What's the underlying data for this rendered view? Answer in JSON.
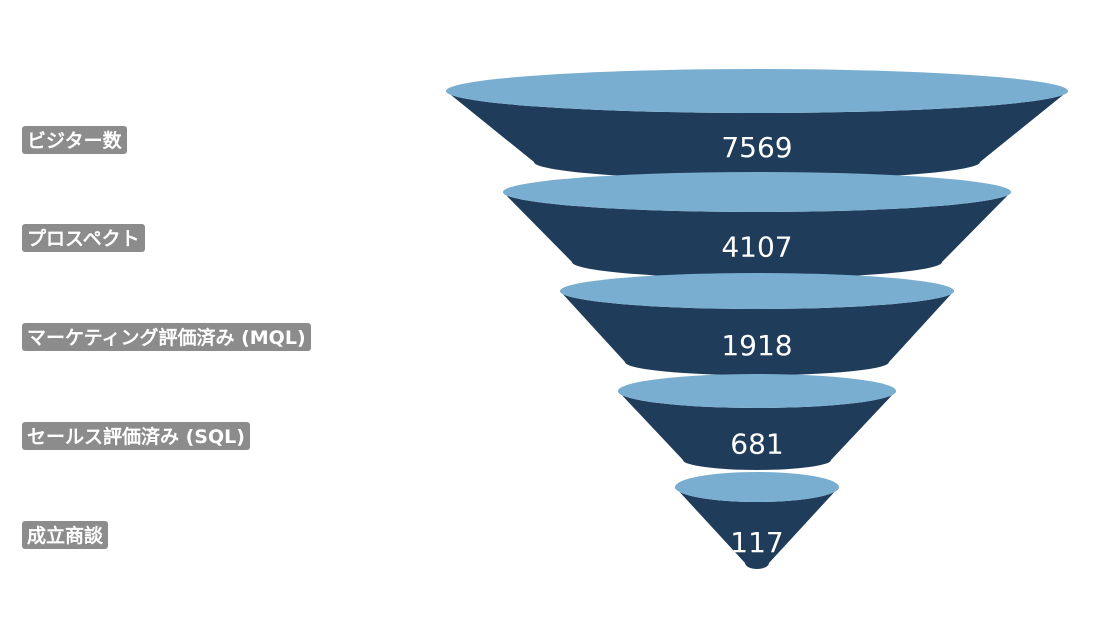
{
  "chart_data": {
    "type": "funnel",
    "categories": [
      "ビジター数",
      "プロスペクト",
      "マーケティング評価済み (MQL)",
      "セールス評価済み (SQL)",
      "成立商談"
    ],
    "values": [
      7569,
      4107,
      1918,
      681,
      117
    ],
    "colors": {
      "body": "#203c5b",
      "top": "#79aed0",
      "label_bg": "#8c8c8c",
      "label_text": "#ffffff",
      "value_text": "#ffffff"
    }
  }
}
